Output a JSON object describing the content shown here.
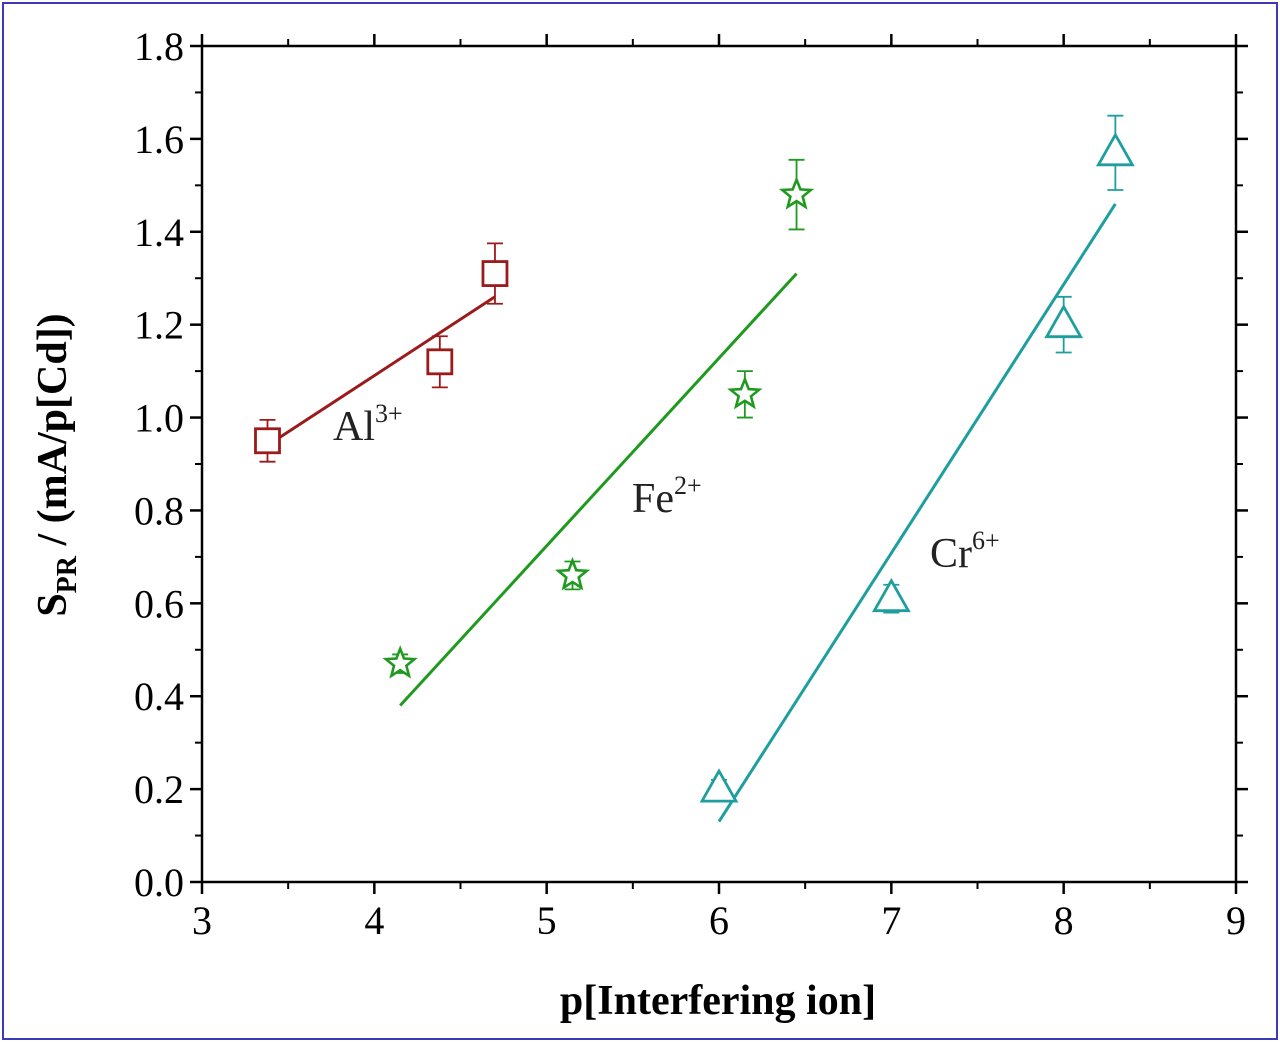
{
  "chart_data": {
    "type": "scatter",
    "title": "",
    "xlabel": "p[Interfering ion]",
    "ylabel": {
      "main": "S",
      "sub": "PR",
      "rest": " / (mA/p[Cd])"
    },
    "xlim": [
      3,
      9
    ],
    "ylim": [
      0,
      1.8
    ],
    "xticks": [
      "3",
      "4",
      "5",
      "6",
      "7",
      "8",
      "9"
    ],
    "yticks": [
      "0.0",
      "0.2",
      "0.4",
      "0.6",
      "0.8",
      "1.0",
      "1.2",
      "1.4",
      "1.6",
      "1.8"
    ],
    "x_minor_step": 0.5,
    "y_minor_step": 0.1,
    "grid": false,
    "legend": "none",
    "series": [
      {
        "label": {
          "base": "Al",
          "sup": "3+"
        },
        "color": "#9b1b1b",
        "marker": "square",
        "points": [
          {
            "x": 3.38,
            "y": 0.95,
            "err": 0.045
          },
          {
            "x": 4.38,
            "y": 1.12,
            "err": 0.055
          },
          {
            "x": 4.7,
            "y": 1.31,
            "err": 0.065
          }
        ],
        "fit": [
          [
            3.38,
            0.94
          ],
          [
            4.7,
            1.26
          ]
        ]
      },
      {
        "label": {
          "base": "Fe",
          "sup": "2+"
        },
        "color": "#1f9a1f",
        "marker": "star",
        "points": [
          {
            "x": 4.15,
            "y": 0.47,
            "err": 0.02
          },
          {
            "x": 5.15,
            "y": 0.66,
            "err": 0.03
          },
          {
            "x": 6.15,
            "y": 1.05,
            "err": 0.05
          },
          {
            "x": 6.45,
            "y": 1.48,
            "err": 0.075
          }
        ],
        "fit": [
          [
            4.15,
            0.38
          ],
          [
            6.45,
            1.31
          ]
        ]
      },
      {
        "label": {
          "base": "Cr",
          "sup": "6+"
        },
        "color": "#1e9e9e",
        "marker": "triangle",
        "points": [
          {
            "x": 6.0,
            "y": 0.2,
            "err": 0.02
          },
          {
            "x": 7.0,
            "y": 0.61,
            "err": 0.03
          },
          {
            "x": 8.0,
            "y": 1.2,
            "err": 0.06
          },
          {
            "x": 8.3,
            "y": 1.57,
            "err": 0.08
          }
        ],
        "fit": [
          [
            6.0,
            0.13
          ],
          [
            8.3,
            1.46
          ]
        ]
      }
    ]
  }
}
